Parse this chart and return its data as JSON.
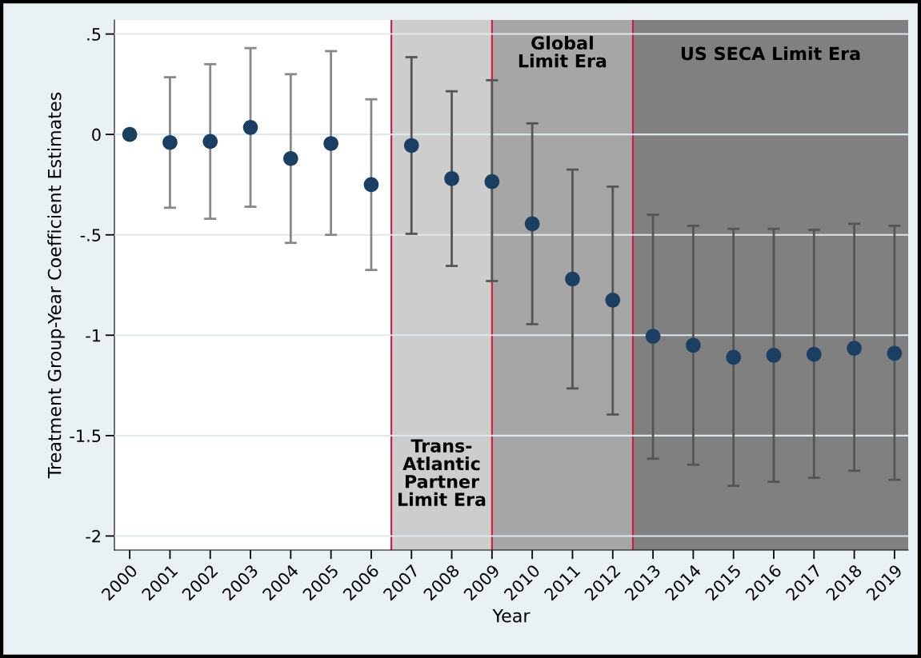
{
  "chart_data": {
    "type": "scatter",
    "xlabel": "Year",
    "ylabel": "Treatment Group-Year Coefficient Estimates",
    "x": [
      2000,
      2001,
      2002,
      2003,
      2004,
      2005,
      2006,
      2007,
      2008,
      2009,
      2010,
      2011,
      2012,
      2013,
      2014,
      2015,
      2016,
      2017,
      2018,
      2019
    ],
    "series": [
      {
        "color": "#1b3f62",
        "values": [
          0,
          -0.04,
          -0.035,
          0.035,
          -0.12,
          -0.045,
          -0.25,
          -0.055,
          -0.22,
          -0.235,
          -0.445,
          -0.72,
          -0.825,
          -1.005,
          -1.05,
          -1.11,
          -1.1,
          -1.095,
          -1.065,
          -1.09
        ],
        "errors": [
          null,
          [
            -0.365,
            0.285
          ],
          [
            -0.42,
            0.35
          ],
          [
            -0.36,
            0.43
          ],
          [
            -0.54,
            0.3
          ],
          [
            -0.5,
            0.415
          ],
          [
            -0.675,
            0.175
          ],
          [
            -0.495,
            0.385
          ],
          [
            -0.655,
            0.215
          ],
          [
            -0.73,
            0.27
          ],
          [
            -0.945,
            0.055
          ],
          [
            -1.265,
            -0.175
          ],
          [
            -1.395,
            -0.26
          ],
          [
            -1.615,
            -0.4
          ],
          [
            -1.645,
            -0.455
          ],
          [
            -1.75,
            -0.47
          ],
          [
            -1.73,
            -0.47
          ],
          [
            -1.71,
            -0.475
          ],
          [
            -1.675,
            -0.445
          ],
          [
            -1.72,
            -0.455
          ]
        ]
      }
    ],
    "marker": "circle",
    "xlim": [
      1999.62,
      2019.34
    ],
    "xticks": [
      {
        "value": 2000,
        "label": "2000"
      },
      {
        "value": 2001,
        "label": "2001"
      },
      {
        "value": 2002,
        "label": "2002"
      },
      {
        "value": 2003,
        "label": "2003"
      },
      {
        "value": 2004,
        "label": "2004"
      },
      {
        "value": 2005,
        "label": "2005"
      },
      {
        "value": 2006,
        "label": "2006"
      },
      {
        "value": 2007,
        "label": "2007"
      },
      {
        "value": 2008,
        "label": "2008"
      },
      {
        "value": 2009,
        "label": "2009"
      },
      {
        "value": 2010,
        "label": "2010"
      },
      {
        "value": 2011,
        "label": "2011"
      },
      {
        "value": 2012,
        "label": "2012"
      },
      {
        "value": 2013,
        "label": "2013"
      },
      {
        "value": 2014,
        "label": "2014"
      },
      {
        "value": 2015,
        "label": "2015"
      },
      {
        "value": 2016,
        "label": "2016"
      },
      {
        "value": 2017,
        "label": "2017"
      },
      {
        "value": 2018,
        "label": "2018"
      },
      {
        "value": 2019,
        "label": "2019"
      }
    ],
    "ylim": [
      -2.07,
      0.57
    ],
    "yticks": [
      {
        "value": 0.5,
        "label": ".5"
      },
      0,
      {
        "value": -0.5,
        "label": "-.5"
      },
      {
        "value": -1,
        "label": "-1"
      },
      {
        "value": -1.5,
        "label": "-1.5"
      },
      {
        "value": -2,
        "label": "-2"
      }
    ],
    "grid": "y",
    "bands": [
      {
        "axis": "x",
        "from": 2006.5,
        "to": 2009,
        "label": "Trans-\nAtlantic\nPartner\nLimit Era",
        "color": "#cdcdcd"
      },
      {
        "axis": "x",
        "from": 2009,
        "to": 2012.5,
        "label": "Global\nLimit Era",
        "color": "#a6a6a6"
      },
      {
        "axis": "x",
        "from": 2012.5,
        "to": 2019.34,
        "label": "US SECA Limit Era",
        "color": "#808080"
      }
    ],
    "ref_lines": [
      {
        "axis": "x",
        "value": 2006.5,
        "color": "#d4183c"
      },
      {
        "axis": "x",
        "value": 2009,
        "color": "#d4183c"
      },
      {
        "axis": "x",
        "value": 2012.5,
        "color": "#d4183c"
      }
    ]
  }
}
